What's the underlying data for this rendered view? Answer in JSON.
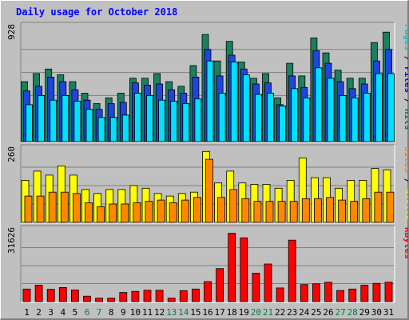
{
  "chart_data": {
    "type": "bar",
    "title": "Daily usage for October 2018",
    "categories": [
      "1",
      "2",
      "3",
      "4",
      "5",
      "6",
      "7",
      "8",
      "9",
      "10",
      "11",
      "12",
      "13",
      "14",
      "15",
      "16",
      "17",
      "18",
      "19",
      "20",
      "21",
      "22",
      "23",
      "24",
      "25",
      "26",
      "27",
      "28",
      "29",
      "30",
      "31"
    ],
    "weekend_days": [
      "6",
      "7",
      "13",
      "14",
      "20",
      "21",
      "27",
      "28"
    ],
    "panels": [
      {
        "name": "pages-files-hits",
        "ytick": "928",
        "ymax": 1000,
        "side_label": [
          {
            "text": "Pages",
            "color": "#00c8c8"
          },
          {
            "text": " / ",
            "color": "#000000"
          },
          {
            "text": "Files",
            "color": "#0000ff"
          },
          {
            "text": " / ",
            "color": "#000000"
          },
          {
            "text": "Hits",
            "color": "#008040"
          }
        ],
        "series": [
          {
            "name": "Hits",
            "color": "#1c8060",
            "values": [
              520,
              590,
              630,
              580,
              520,
              420,
              330,
              380,
              420,
              550,
              550,
              590,
              520,
              480,
              660,
              930,
              700,
              870,
              690,
              550,
              590,
              380,
              680,
              570,
              900,
              770,
              620,
              550,
              550,
              860,
              950
            ]
          },
          {
            "name": "Files",
            "color": "#1e46dc",
            "values": [
              440,
              480,
              560,
              520,
              450,
              360,
              280,
              330,
              340,
              510,
              490,
              500,
              450,
              420,
              560,
              800,
              570,
              750,
              630,
              500,
              510,
              320,
              570,
              470,
              790,
              680,
              520,
              460,
              500,
              700,
              800
            ]
          },
          {
            "name": "Pages",
            "color": "#00e0ff",
            "values": [
              320,
              400,
              360,
              400,
              350,
              280,
              210,
              210,
              230,
              420,
              400,
              360,
              350,
              330,
              370,
              700,
              420,
              690,
              580,
              410,
              420,
              310,
              460,
              380,
              640,
              550,
              400,
              380,
              420,
              590,
              590
            ]
          }
        ]
      },
      {
        "name": "sites-visits",
        "ytick": "260",
        "ymax": 280,
        "side_label": [
          {
            "text": "Sites",
            "color": "#ff8000"
          },
          {
            "text": " / ",
            "color": "#000000"
          },
          {
            "text": "Visits",
            "color": "#e0e000"
          }
        ],
        "series": [
          {
            "name": "Visits",
            "color": "#ffff00",
            "values": [
              160,
              195,
              180,
              215,
              180,
              125,
              110,
              125,
              125,
              140,
              130,
              110,
              100,
              110,
              115,
              270,
              150,
              195,
              150,
              145,
              145,
              130,
              160,
              245,
              170,
              170,
              130,
              160,
              160,
              205,
              200
            ]
          },
          {
            "name": "Sites",
            "color": "#ff8800",
            "values": [
              100,
              100,
              115,
              115,
              110,
              75,
              60,
              70,
              70,
              75,
              80,
              85,
              75,
              85,
              95,
              240,
              95,
              125,
              90,
              80,
              80,
              80,
              80,
              90,
              90,
              95,
              85,
              80,
              90,
              115,
              115
            ]
          }
        ]
      },
      {
        "name": "kbytes",
        "ytick": "31626",
        "ymax": 31626,
        "side_label": [
          {
            "text": "KBytes",
            "color": "#ff0000"
          }
        ],
        "series": [
          {
            "name": "KBytes",
            "color": "#ff0000",
            "values": [
              5500,
              7200,
              5400,
              6200,
              5100,
              2400,
              1500,
              1500,
              4000,
              4500,
              5000,
              5000,
              1500,
              4800,
              5500,
              8800,
              14500,
              30000,
              28000,
              12500,
              16500,
              6000,
              27000,
              7500,
              7800,
              8500,
              4900,
              5500,
              7200,
              8000,
              8500
            ]
          }
        ]
      }
    ],
    "colors": {
      "background": "#c0c0c0",
      "plot_background": "#c0c0c0",
      "title_color": "#0000ff",
      "grid": "#808080",
      "weekday_label": "#000000",
      "weekend_label": "#008040"
    },
    "grid": true
  }
}
